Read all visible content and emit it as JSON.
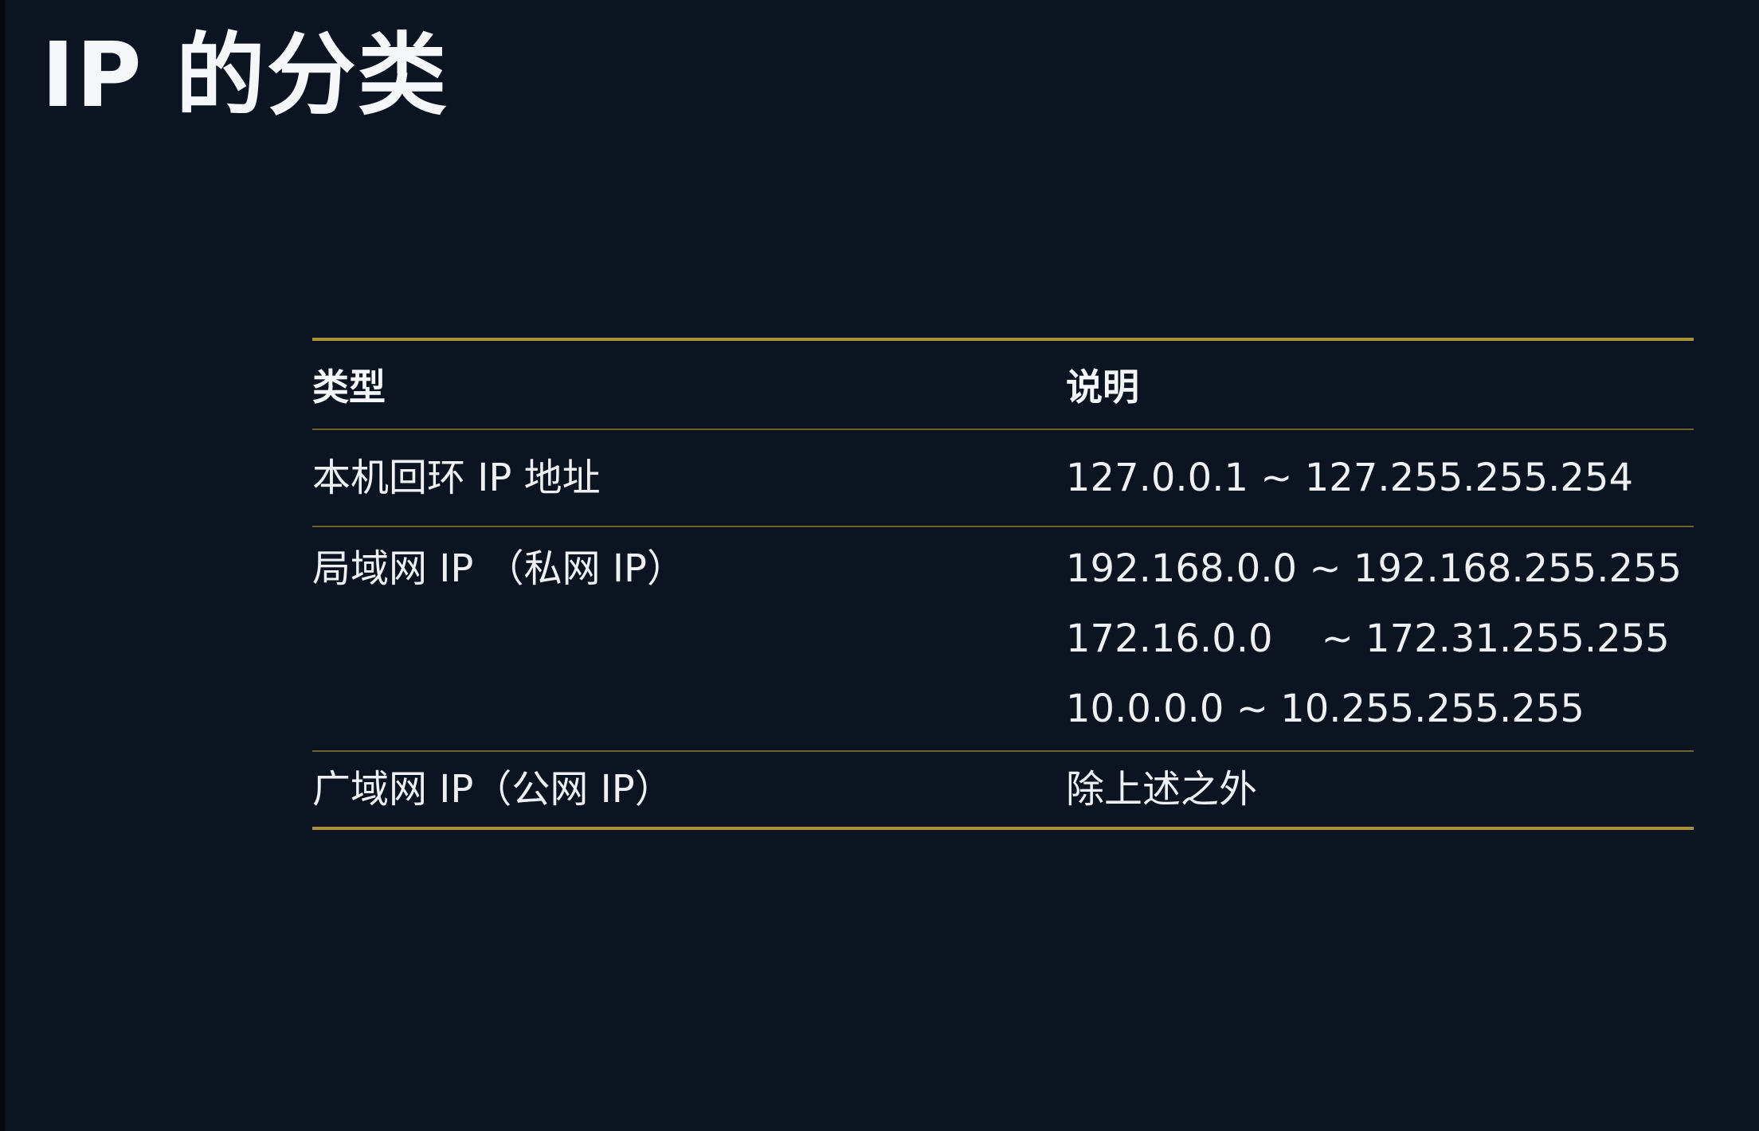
{
  "page": {
    "title": "IP 的分类"
  },
  "table": {
    "headers": {
      "type": "类型",
      "description": "说明"
    },
    "rows": [
      {
        "type": "本机回环 IP 地址",
        "ranges": [
          "127.0.0.1 ~ 127.255.255.254"
        ]
      },
      {
        "type": "局域网 IP （私网 IP）",
        "ranges": [
          "192.168.0.0 ~ 192.168.255.255",
          "172.16.0.0    ~ 172.31.255.255",
          "10.0.0.0 ~ 10.255.255.255"
        ]
      },
      {
        "type": "广域网 IP（公网 IP）",
        "ranges": [
          "除上述之外"
        ]
      }
    ]
  },
  "colors": {
    "background": "#0d1421",
    "rule_gold": "#a8913a",
    "text": "#eef0f3"
  }
}
